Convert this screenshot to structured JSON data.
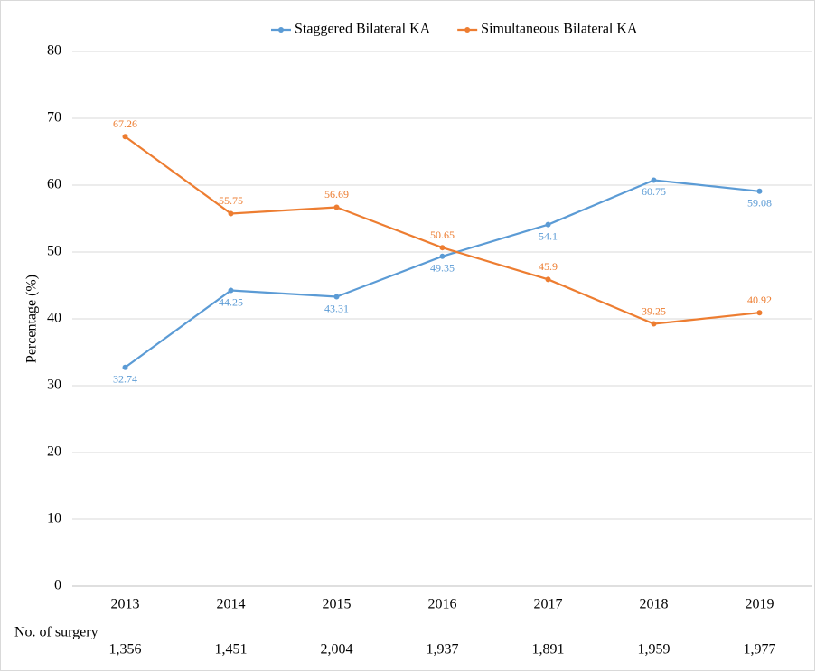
{
  "chart_data": {
    "type": "line",
    "y_label": "Percentage (%)",
    "categories": [
      "2013",
      "2014",
      "2015",
      "2016",
      "2017",
      "2018",
      "2019"
    ],
    "series": [
      {
        "name": "Staggered Bilateral KA",
        "color": "#5b9bd5",
        "values": [
          32.74,
          44.25,
          43.31,
          49.35,
          54.1,
          60.75,
          59.08
        ]
      },
      {
        "name": "Simultaneous Bilateral KA",
        "color": "#ed7d31",
        "values": [
          67.26,
          55.75,
          56.69,
          50.65,
          45.9,
          39.25,
          40.92
        ]
      }
    ],
    "ylim": [
      0,
      80
    ],
    "yticks": [
      0,
      10,
      20,
      30,
      40,
      50,
      60,
      70,
      80
    ],
    "grid": true,
    "legend": "top",
    "surgery_counts": {
      "label": "No. of surgery",
      "values": [
        "1,356",
        "1,451",
        "2,004",
        "1,937",
        "1,891",
        "1,959",
        "1,977"
      ]
    }
  }
}
